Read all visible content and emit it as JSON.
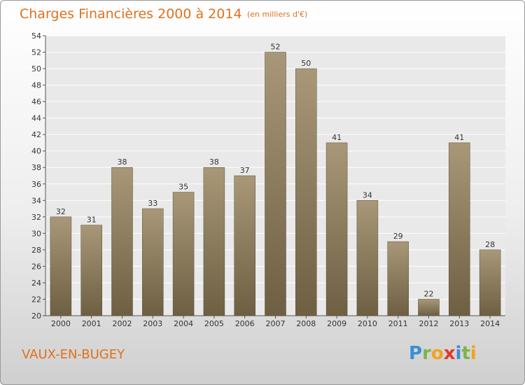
{
  "header": {
    "title": "Charges Financières 2000 à 2014",
    "unit_note": "(en milliers d'€)"
  },
  "footer": {
    "commune": "VAUX-EN-BUGEY",
    "logo": "Proxiti"
  },
  "colors": {
    "accent": "#e0711c",
    "bar_top": "#a89878",
    "bar_bottom": "#6e5f43"
  },
  "chart_data": {
    "type": "bar",
    "title": "Charges Financières 2000 à 2014",
    "subtitle": "(en milliers d'€)",
    "categories": [
      "2000",
      "2001",
      "2002",
      "2003",
      "2004",
      "2005",
      "2006",
      "2007",
      "2008",
      "2009",
      "2010",
      "2011",
      "2012",
      "2013",
      "2014"
    ],
    "values": [
      32,
      31,
      38,
      33,
      35,
      38,
      37,
      52,
      50,
      41,
      34,
      29,
      22,
      41,
      28
    ],
    "ylim": [
      20,
      54
    ],
    "yticks": [
      20,
      22,
      24,
      26,
      28,
      30,
      32,
      34,
      36,
      38,
      40,
      42,
      44,
      46,
      48,
      50,
      52,
      54
    ],
    "grid": true,
    "legend": "none"
  }
}
